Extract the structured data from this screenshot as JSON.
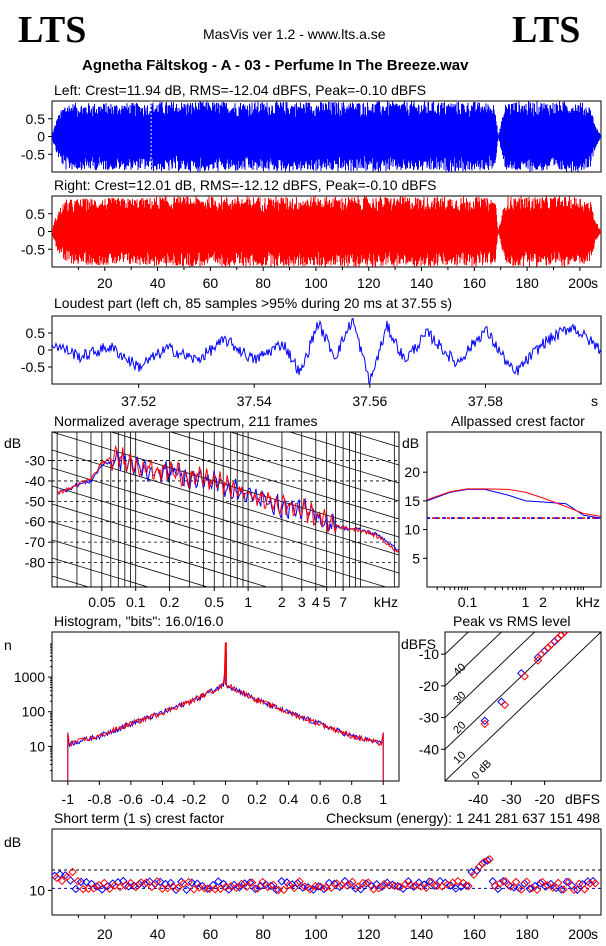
{
  "header": {
    "logo_left": "LTS",
    "logo_right": "LTS",
    "app": "MasVis ver 1.2 - www.lts.a.se",
    "title": "Agnetha Fältskog - A - 03 - Perfume In The Breeze.wav"
  },
  "colors": {
    "left": "#0000ff",
    "right": "#ff0000",
    "axis": "#000000"
  },
  "chart_data": [
    {
      "id": "left-waveform",
      "type": "area",
      "title": "Left: Crest=11.94 dB, RMS=-12.04 dBFS, Peak=-0.10 dBFS",
      "ylim": [
        -1,
        1
      ],
      "yticks": [
        "0.5",
        "0",
        "-0.5"
      ],
      "ytick_values": [
        0.5,
        0,
        -0.5
      ],
      "xlim": [
        0,
        208
      ],
      "envelope_time_s": [
        0,
        2,
        5,
        15,
        37,
        38,
        60,
        100,
        140,
        160,
        165,
        168,
        169,
        172,
        200,
        204,
        206,
        208
      ],
      "envelope_amp": [
        0.05,
        0.55,
        0.95,
        0.95,
        0.95,
        0.99,
        0.99,
        0.99,
        0.99,
        0.99,
        0.95,
        0.95,
        0.0,
        0.99,
        0.99,
        0.85,
        0.3,
        0.02
      ]
    },
    {
      "id": "right-waveform",
      "type": "area",
      "title": "Right: Crest=12.01 dB, RMS=-12.12 dBFS, Peak=-0.10 dBFS",
      "ylim": [
        -1,
        1
      ],
      "yticks": [
        "0.5",
        "0",
        "-0.5"
      ],
      "ytick_values": [
        0.5,
        0,
        -0.5
      ],
      "xlim": [
        0,
        208
      ],
      "xticks": [
        20,
        40,
        60,
        80,
        100,
        120,
        140,
        160,
        180,
        200
      ],
      "xunit": "s",
      "envelope_time_s": [
        0,
        2,
        5,
        15,
        37,
        38,
        60,
        100,
        140,
        160,
        165,
        168,
        169,
        172,
        200,
        204,
        206,
        208
      ],
      "envelope_amp": [
        0.05,
        0.55,
        0.9,
        0.95,
        0.95,
        0.99,
        0.99,
        0.99,
        0.99,
        0.99,
        0.95,
        0.95,
        0.0,
        0.99,
        0.99,
        0.85,
        0.3,
        0.02
      ]
    },
    {
      "id": "loudest-part",
      "type": "line",
      "title": "Loudest part (left  ch, 85 samples >95% during 20 ms at 37.55 s)",
      "ylim": [
        -1,
        1
      ],
      "yticks": [
        "0.5",
        "0",
        "-0.5"
      ],
      "ytick_values": [
        0.5,
        0,
        -0.5
      ],
      "xlim": [
        37.505,
        37.6
      ],
      "xticks": [
        "37.52",
        "37.54",
        "37.56",
        "37.58"
      ],
      "xtick_values": [
        37.52,
        37.54,
        37.56,
        37.58
      ],
      "xunit": "s",
      "x": [
        37.505,
        37.51,
        37.515,
        37.52,
        37.525,
        37.53,
        37.535,
        37.54,
        37.545,
        37.548,
        37.551,
        37.554,
        37.557,
        37.56,
        37.563,
        37.566,
        37.57,
        37.575,
        37.58,
        37.585,
        37.59,
        37.595,
        37.6
      ],
      "y": [
        0.2,
        -0.2,
        0.1,
        -0.5,
        0.05,
        -0.3,
        0.3,
        -0.3,
        0.2,
        -0.7,
        0.8,
        -0.2,
        0.9,
        -0.95,
        0.7,
        -0.3,
        0.5,
        -0.4,
        0.6,
        -0.7,
        0.2,
        0.7,
        0.0
      ]
    },
    {
      "id": "average-spectrum",
      "type": "line",
      "title": "Normalized average spectrum, 211 frames",
      "ylabel": "dB",
      "yticks": [
        "-30",
        "-40",
        "-50",
        "-60",
        "-70",
        "-80"
      ],
      "ytick_values": [
        -30,
        -40,
        -50,
        -60,
        -70,
        -80
      ],
      "ylim": [
        -92,
        -16
      ],
      "xscale": "log",
      "xlim": [
        0.018,
        22
      ],
      "xticks": [
        "0.05",
        "0.1",
        "0.2",
        "0.5",
        "1",
        "2",
        "3",
        "4",
        "5",
        "7"
      ],
      "xtick_values": [
        0.05,
        0.1,
        0.2,
        0.5,
        1,
        2,
        3,
        4,
        5,
        7
      ],
      "xunit": "kHz",
      "series": [
        {
          "name": "",
          "color": "#0000ff",
          "x": [
            0.02,
            0.03,
            0.04,
            0.05,
            0.07,
            0.1,
            0.15,
            0.2,
            0.3,
            0.5,
            0.7,
            1,
            1.5,
            2,
            3,
            4,
            5,
            7,
            10,
            15,
            20
          ],
          "y": [
            -46,
            -42,
            -40,
            -32,
            -29,
            -33,
            -36,
            -35,
            -39,
            -40,
            -44,
            -47,
            -50,
            -53,
            -54,
            -57,
            -61,
            -63,
            -64,
            -67,
            -73
          ]
        },
        {
          "name": "",
          "color": "#ff0000",
          "x": [
            0.02,
            0.03,
            0.04,
            0.05,
            0.07,
            0.1,
            0.15,
            0.2,
            0.3,
            0.5,
            0.7,
            1,
            1.5,
            2,
            3,
            4,
            5,
            7,
            10,
            15,
            20
          ],
          "y": [
            -46,
            -42,
            -39,
            -31,
            -28,
            -32,
            -35,
            -35,
            -38,
            -40,
            -43,
            -47,
            -50,
            -52,
            -54,
            -57,
            -60,
            -63,
            -64,
            -68,
            -74
          ]
        }
      ]
    },
    {
      "id": "allpassed-crest",
      "type": "line",
      "title": "Allpassed crest factor",
      "ylabel": "dB",
      "yticks": [
        "20",
        "15",
        "10",
        "5"
      ],
      "ytick_values": [
        20,
        15,
        10,
        5
      ],
      "ylim": [
        0,
        27
      ],
      "xscale": "log",
      "xlim": [
        0.02,
        20
      ],
      "xticks": [
        "0.1",
        "1",
        "2",
        "kHz"
      ],
      "xtick_values": [
        0.1,
        1,
        2
      ],
      "series": [
        {
          "name": "",
          "color": "#0000ff",
          "x": [
            0.02,
            0.05,
            0.1,
            0.2,
            0.5,
            1,
            2,
            5,
            10,
            20
          ],
          "y": [
            15,
            16.5,
            17,
            17,
            16,
            15,
            14.8,
            14.5,
            12.5,
            12
          ]
        },
        {
          "name": "",
          "color": "#ff0000",
          "x": [
            0.02,
            0.05,
            0.1,
            0.2,
            0.5,
            1,
            2,
            5,
            10,
            20
          ],
          "y": [
            15.2,
            16.6,
            17.1,
            17.1,
            17,
            16.5,
            15.5,
            14,
            12.8,
            12.3
          ]
        }
      ],
      "reference_crest": 12
    },
    {
      "id": "histogram",
      "type": "line",
      "title": "Histogram, \"bits\": 16.0/16.0",
      "ylabel": "n",
      "yscale": "log",
      "yticks": [
        "1000",
        "100",
        "10"
      ],
      "ytick_values": [
        1000,
        100,
        10
      ],
      "ylim": [
        1,
        20000
      ],
      "xlim": [
        -1.1,
        1.1
      ],
      "xticks": [
        "-1",
        "-0.8",
        "-0.6",
        "-0.4",
        "-0.2",
        "0",
        "0.2",
        "0.4",
        "0.6",
        "0.8",
        "1"
      ],
      "xtick_values": [
        -1,
        -0.8,
        -0.6,
        -0.4,
        -0.2,
        0,
        0.2,
        0.4,
        0.6,
        0.8,
        1
      ],
      "series": [
        {
          "name": "",
          "color": "#0000ff",
          "x": [
            -1,
            -0.99,
            -0.8,
            -0.6,
            -0.4,
            -0.2,
            -0.01,
            0,
            0.01,
            0.2,
            0.4,
            0.6,
            0.8,
            0.99,
            1
          ],
          "y": [
            25,
            12,
            20,
            45,
            95,
            220,
            600,
            5000,
            600,
            220,
            95,
            45,
            20,
            12,
            25
          ]
        },
        {
          "name": "",
          "color": "#ff0000",
          "x": [
            -1,
            -0.99,
            -0.8,
            -0.6,
            -0.4,
            -0.2,
            -0.01,
            0,
            0.01,
            0.2,
            0.4,
            0.6,
            0.8,
            0.99,
            1
          ],
          "y": [
            25,
            12,
            20,
            45,
            95,
            220,
            600,
            10000,
            600,
            220,
            95,
            45,
            20,
            12,
            25
          ]
        }
      ]
    },
    {
      "id": "peak-vs-rms",
      "type": "scatter",
      "title": "Peak vs RMS level",
      "ylabel": "dBFS",
      "xlabel": "dBFS",
      "yticks": [
        "-10",
        "-20",
        "-30",
        "-40"
      ],
      "ytick_values": [
        -10,
        -20,
        -30,
        -40
      ],
      "xticks": [
        "-40",
        "-30",
        "-20"
      ],
      "xtick_values": [
        -40,
        -30,
        -20
      ],
      "xlim": [
        -50,
        -3
      ],
      "ylim": [
        -50,
        -3
      ],
      "crest_lines": [
        "40",
        "30",
        "20",
        "10",
        "0 dB"
      ],
      "series": [
        {
          "name": "",
          "color": "#0000ff",
          "x": [
            -38,
            -33,
            -27,
            -22,
            -20,
            -19,
            -17,
            -16,
            -15,
            -14,
            -13,
            -12,
            -12
          ],
          "y": [
            -31,
            -25,
            -16,
            -11,
            -9,
            -8,
            -6,
            -5,
            -4,
            -3,
            -2,
            -1,
            -0.5
          ]
        },
        {
          "name": "",
          "color": "#ff0000",
          "x": [
            -38,
            -32,
            -26,
            -22,
            -21,
            -19,
            -18,
            -16,
            -15,
            -14,
            -13,
            -12
          ],
          "y": [
            -32,
            -26,
            -17,
            -12,
            -10,
            -8,
            -7,
            -5,
            -4,
            -3,
            -2,
            -1
          ]
        }
      ]
    },
    {
      "id": "short-term-crest",
      "type": "scatter",
      "title": "Short term (1 s) crest factor",
      "checksum": "Checksum (energy):  1 241 281 637 151 498",
      "ylabel": "dB",
      "yticks": [
        "10"
      ],
      "ytick_values": [
        10
      ],
      "ylim": [
        4,
        25
      ],
      "xlim": [
        0,
        208
      ],
      "xticks": [
        20,
        40,
        60,
        80,
        100,
        120,
        140,
        160,
        180,
        200
      ],
      "xunit": "s",
      "reference_dotted": [
        15,
        10.5
      ]
    }
  ]
}
